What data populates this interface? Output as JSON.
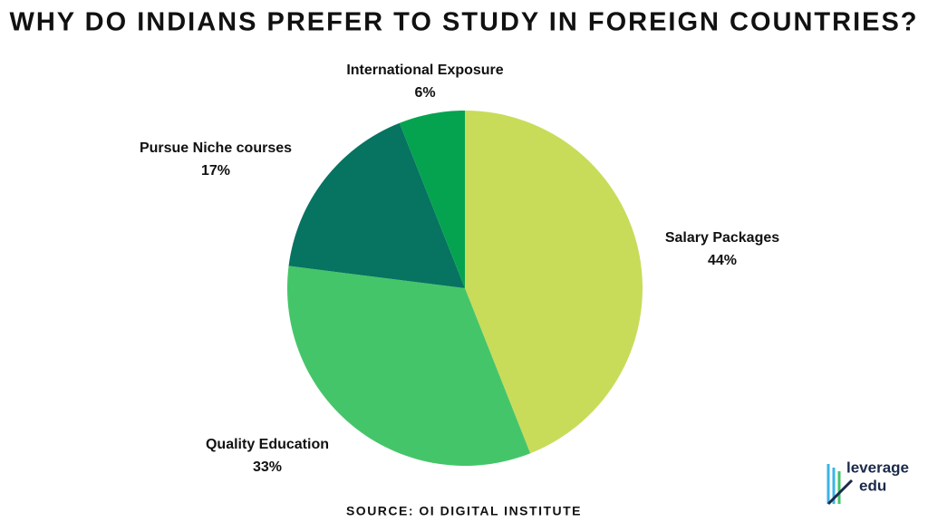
{
  "chart_data": {
    "type": "pie",
    "title": "WHY DO INDIANS PREFER TO STUDY IN FOREIGN COUNTRIES?",
    "categories": [
      "Salary Packages",
      "Quality Education",
      "Pursue Niche courses",
      "International Exposure"
    ],
    "values": [
      44,
      33,
      17,
      6
    ],
    "value_labels": [
      "44%",
      "33%",
      "17%",
      "6%"
    ],
    "colors": [
      "#c8dc5a",
      "#45c56a",
      "#077361",
      "#05a34f"
    ],
    "source": "SOURCE: OI DIGITAL INSTITUTE"
  },
  "logo": {
    "line1": "leverage",
    "line2": "edu"
  }
}
